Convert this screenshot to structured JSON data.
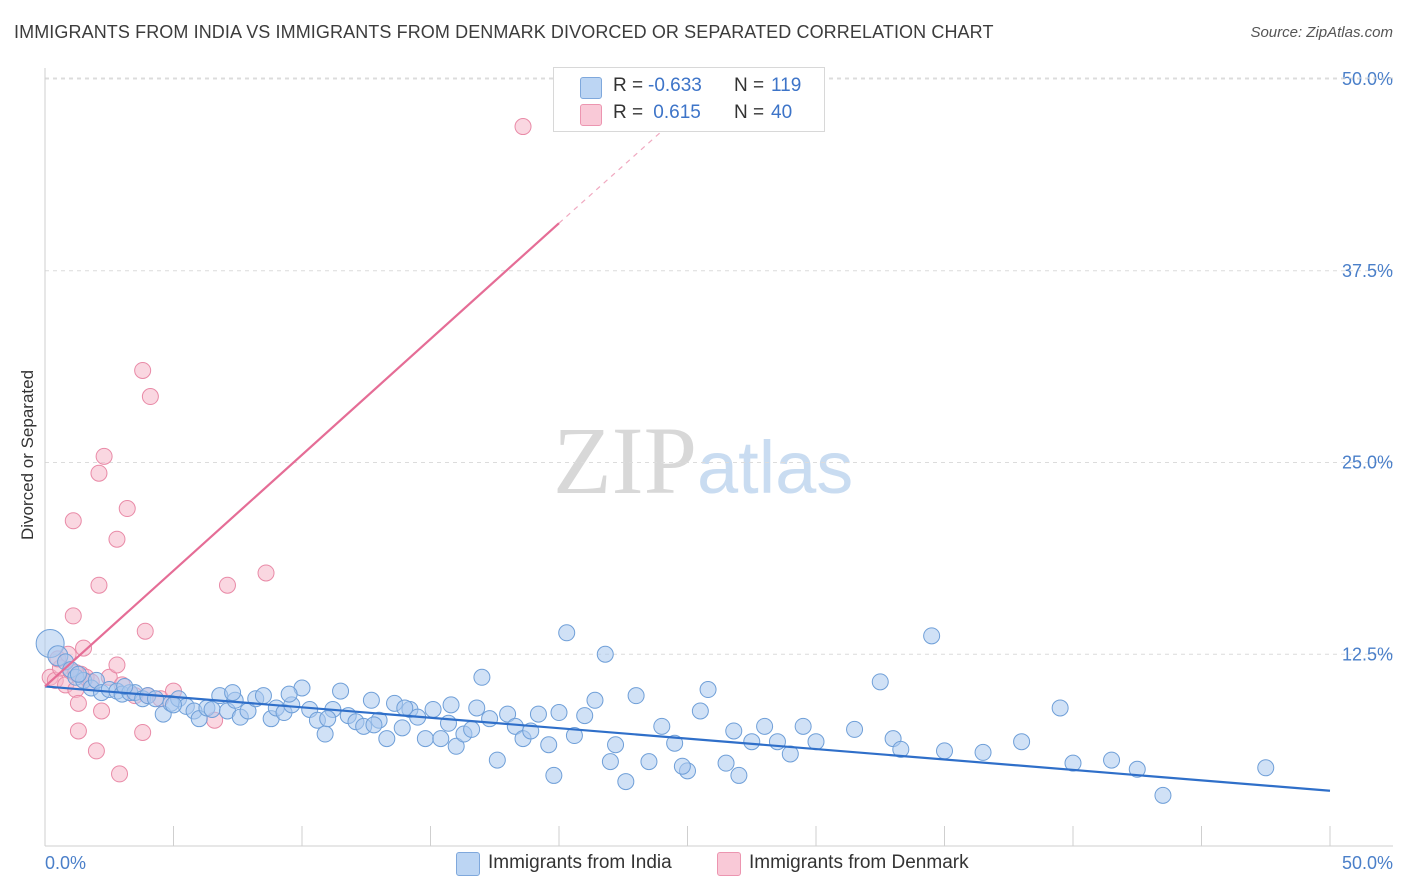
{
  "title": "IMMIGRANTS FROM INDIA VS IMMIGRANTS FROM DENMARK DIVORCED OR SEPARATED CORRELATION CHART",
  "source": "Source: ZipAtlas.com",
  "watermark": {
    "zip": "ZIP",
    "atlas": "atlas"
  },
  "legend": {
    "india": {
      "r_label": "R = ",
      "r_value": "-0.633",
      "n_label": "N = ",
      "n_value": "119"
    },
    "denmark": {
      "r_label": "R = ",
      "r_value": " 0.615",
      "n_label": "N = ",
      "n_value": "40"
    }
  },
  "bottom_legend": {
    "india": "Immigrants from India",
    "denmark": "Immigrants from Denmark"
  },
  "colors": {
    "india": "#a9c8ef",
    "india_stroke": "#6f9fd8",
    "india_line": "#2f6fc9",
    "denmark": "#f6b6c8",
    "denmark_stroke": "#e98aa7",
    "denmark_line": "#e56d96"
  },
  "chart_data": {
    "type": "scatter",
    "title": "IMMIGRANTS FROM INDIA VS IMMIGRANTS FROM DENMARK DIVORCED OR SEPARATED CORRELATION CHART",
    "xlabel": "",
    "ylabel": "Divorced or Separated",
    "xlim": [
      0,
      50
    ],
    "ylim": [
      0,
      50
    ],
    "x_tick_labels": [
      "0.0%",
      "50.0%"
    ],
    "y_ticks": [
      12.5,
      25.0,
      37.5,
      50.0
    ],
    "y_tick_labels": [
      "12.5%",
      "25.0%",
      "37.5%",
      "50.0%"
    ],
    "grid": true,
    "legend_position": "top-center",
    "series": [
      {
        "name": "Immigrants from India",
        "r": -0.633,
        "n": 119,
        "trend": {
          "x": [
            0,
            50
          ],
          "y": [
            10.4,
            3.6
          ]
        },
        "points": [
          [
            0.2,
            13.2
          ],
          [
            0.5,
            12.4
          ],
          [
            0.8,
            12.0
          ],
          [
            1.0,
            11.5
          ],
          [
            1.2,
            11.0
          ],
          [
            1.5,
            10.8
          ],
          [
            1.8,
            10.3
          ],
          [
            2.0,
            10.8
          ],
          [
            2.2,
            10.0
          ],
          [
            2.5,
            10.2
          ],
          [
            2.8,
            10.1
          ],
          [
            3.0,
            9.9
          ],
          [
            3.3,
            10.0
          ],
          [
            3.5,
            10.0
          ],
          [
            3.8,
            9.6
          ],
          [
            4.0,
            9.8
          ],
          [
            4.3,
            9.6
          ],
          [
            4.6,
            8.6
          ],
          [
            4.9,
            9.3
          ],
          [
            5.2,
            9.6
          ],
          [
            5.5,
            9.1
          ],
          [
            5.8,
            8.8
          ],
          [
            6.0,
            8.3
          ],
          [
            6.3,
            9.0
          ],
          [
            6.5,
            8.9
          ],
          [
            6.8,
            9.8
          ],
          [
            7.1,
            8.8
          ],
          [
            7.4,
            9.5
          ],
          [
            7.6,
            8.4
          ],
          [
            7.9,
            8.8
          ],
          [
            8.2,
            9.6
          ],
          [
            8.5,
            9.8
          ],
          [
            8.8,
            8.3
          ],
          [
            9.0,
            9.0
          ],
          [
            9.3,
            8.7
          ],
          [
            9.6,
            9.2
          ],
          [
            10.0,
            10.3
          ],
          [
            10.3,
            8.9
          ],
          [
            10.6,
            8.2
          ],
          [
            10.9,
            7.3
          ],
          [
            11.2,
            8.9
          ],
          [
            11.5,
            10.1
          ],
          [
            11.8,
            8.5
          ],
          [
            12.1,
            8.1
          ],
          [
            12.4,
            7.8
          ],
          [
            12.7,
            9.5
          ],
          [
            13.0,
            8.2
          ],
          [
            13.3,
            7.0
          ],
          [
            13.6,
            9.3
          ],
          [
            13.9,
            7.7
          ],
          [
            14.2,
            8.9
          ],
          [
            14.5,
            8.4
          ],
          [
            14.8,
            7.0
          ],
          [
            15.1,
            8.9
          ],
          [
            15.4,
            7.0
          ],
          [
            15.7,
            8.0
          ],
          [
            16.0,
            6.5
          ],
          [
            16.3,
            7.3
          ],
          [
            16.6,
            7.6
          ],
          [
            17.0,
            11.0
          ],
          [
            17.3,
            8.3
          ],
          [
            17.6,
            5.6
          ],
          [
            18.0,
            8.6
          ],
          [
            18.3,
            7.8
          ],
          [
            18.6,
            7.0
          ],
          [
            18.9,
            7.5
          ],
          [
            19.2,
            8.6
          ],
          [
            19.6,
            6.6
          ],
          [
            20.0,
            8.7
          ],
          [
            20.3,
            13.9
          ],
          [
            20.6,
            7.2
          ],
          [
            21.0,
            8.5
          ],
          [
            21.4,
            9.5
          ],
          [
            21.8,
            12.5
          ],
          [
            22.2,
            6.6
          ],
          [
            22.6,
            4.2
          ],
          [
            23.0,
            9.8
          ],
          [
            23.5,
            5.5
          ],
          [
            24.0,
            7.8
          ],
          [
            24.5,
            6.7
          ],
          [
            25.0,
            4.9
          ],
          [
            25.5,
            8.8
          ],
          [
            25.8,
            10.2
          ],
          [
            26.5,
            5.4
          ],
          [
            27.0,
            4.6
          ],
          [
            27.5,
            6.8
          ],
          [
            28.0,
            7.8
          ],
          [
            28.5,
            6.8
          ],
          [
            29.0,
            6.0
          ],
          [
            29.5,
            7.8
          ],
          [
            30.0,
            6.8
          ],
          [
            31.5,
            7.6
          ],
          [
            32.5,
            10.7
          ],
          [
            33.0,
            7.0
          ],
          [
            33.3,
            6.3
          ],
          [
            34.5,
            13.7
          ],
          [
            35.0,
            6.2
          ],
          [
            36.5,
            6.1
          ],
          [
            38.0,
            6.8
          ],
          [
            39.5,
            9.0
          ],
          [
            40.0,
            5.4
          ],
          [
            41.5,
            5.6
          ],
          [
            42.5,
            5.0
          ],
          [
            43.5,
            3.3
          ],
          [
            47.5,
            5.1
          ],
          [
            26.8,
            7.5
          ],
          [
            24.8,
            5.2
          ],
          [
            22.0,
            5.5
          ],
          [
            19.8,
            4.6
          ],
          [
            16.8,
            9.0
          ],
          [
            15.8,
            9.2
          ],
          [
            14.0,
            9.0
          ],
          [
            12.8,
            7.9
          ],
          [
            11.0,
            8.3
          ],
          [
            9.5,
            9.9
          ],
          [
            7.3,
            10.0
          ],
          [
            5.0,
            9.2
          ],
          [
            3.1,
            10.4
          ],
          [
            1.3,
            11.2
          ]
        ]
      },
      {
        "name": "Immigrants from Denmark",
        "r": 0.615,
        "n": 40,
        "trend": {
          "x": [
            0,
            20
          ],
          "y": [
            10.4,
            40.6
          ]
        },
        "trend_dashed": {
          "x": [
            20,
            24
          ],
          "y": [
            40.6,
            46.6
          ]
        },
        "points": [
          [
            0.2,
            11.0
          ],
          [
            0.4,
            10.8
          ],
          [
            0.6,
            11.6
          ],
          [
            0.8,
            10.5
          ],
          [
            1.0,
            11.4
          ],
          [
            1.2,
            10.2
          ],
          [
            1.4,
            11.2
          ],
          [
            1.6,
            11.0
          ],
          [
            1.8,
            10.7
          ],
          [
            0.5,
            12.2
          ],
          [
            0.9,
            12.5
          ],
          [
            1.1,
            15.0
          ],
          [
            1.5,
            12.9
          ],
          [
            2.0,
            6.2
          ],
          [
            2.2,
            8.8
          ],
          [
            2.5,
            11.0
          ],
          [
            2.8,
            11.8
          ],
          [
            3.0,
            10.5
          ],
          [
            3.5,
            9.8
          ],
          [
            4.0,
            9.8
          ],
          [
            4.5,
            9.6
          ],
          [
            5.0,
            10.1
          ],
          [
            2.1,
            24.3
          ],
          [
            2.3,
            25.4
          ],
          [
            3.2,
            22.0
          ],
          [
            2.8,
            20.0
          ],
          [
            1.1,
            21.2
          ],
          [
            2.1,
            17.0
          ],
          [
            3.8,
            31.0
          ],
          [
            4.1,
            29.3
          ],
          [
            7.1,
            17.0
          ],
          [
            8.6,
            17.8
          ],
          [
            3.9,
            14.0
          ],
          [
            1.2,
            11.3
          ],
          [
            1.3,
            9.3
          ],
          [
            1.3,
            7.5
          ],
          [
            3.8,
            7.4
          ],
          [
            2.9,
            4.7
          ],
          [
            6.6,
            8.2
          ],
          [
            18.6,
            46.9
          ]
        ]
      }
    ]
  }
}
